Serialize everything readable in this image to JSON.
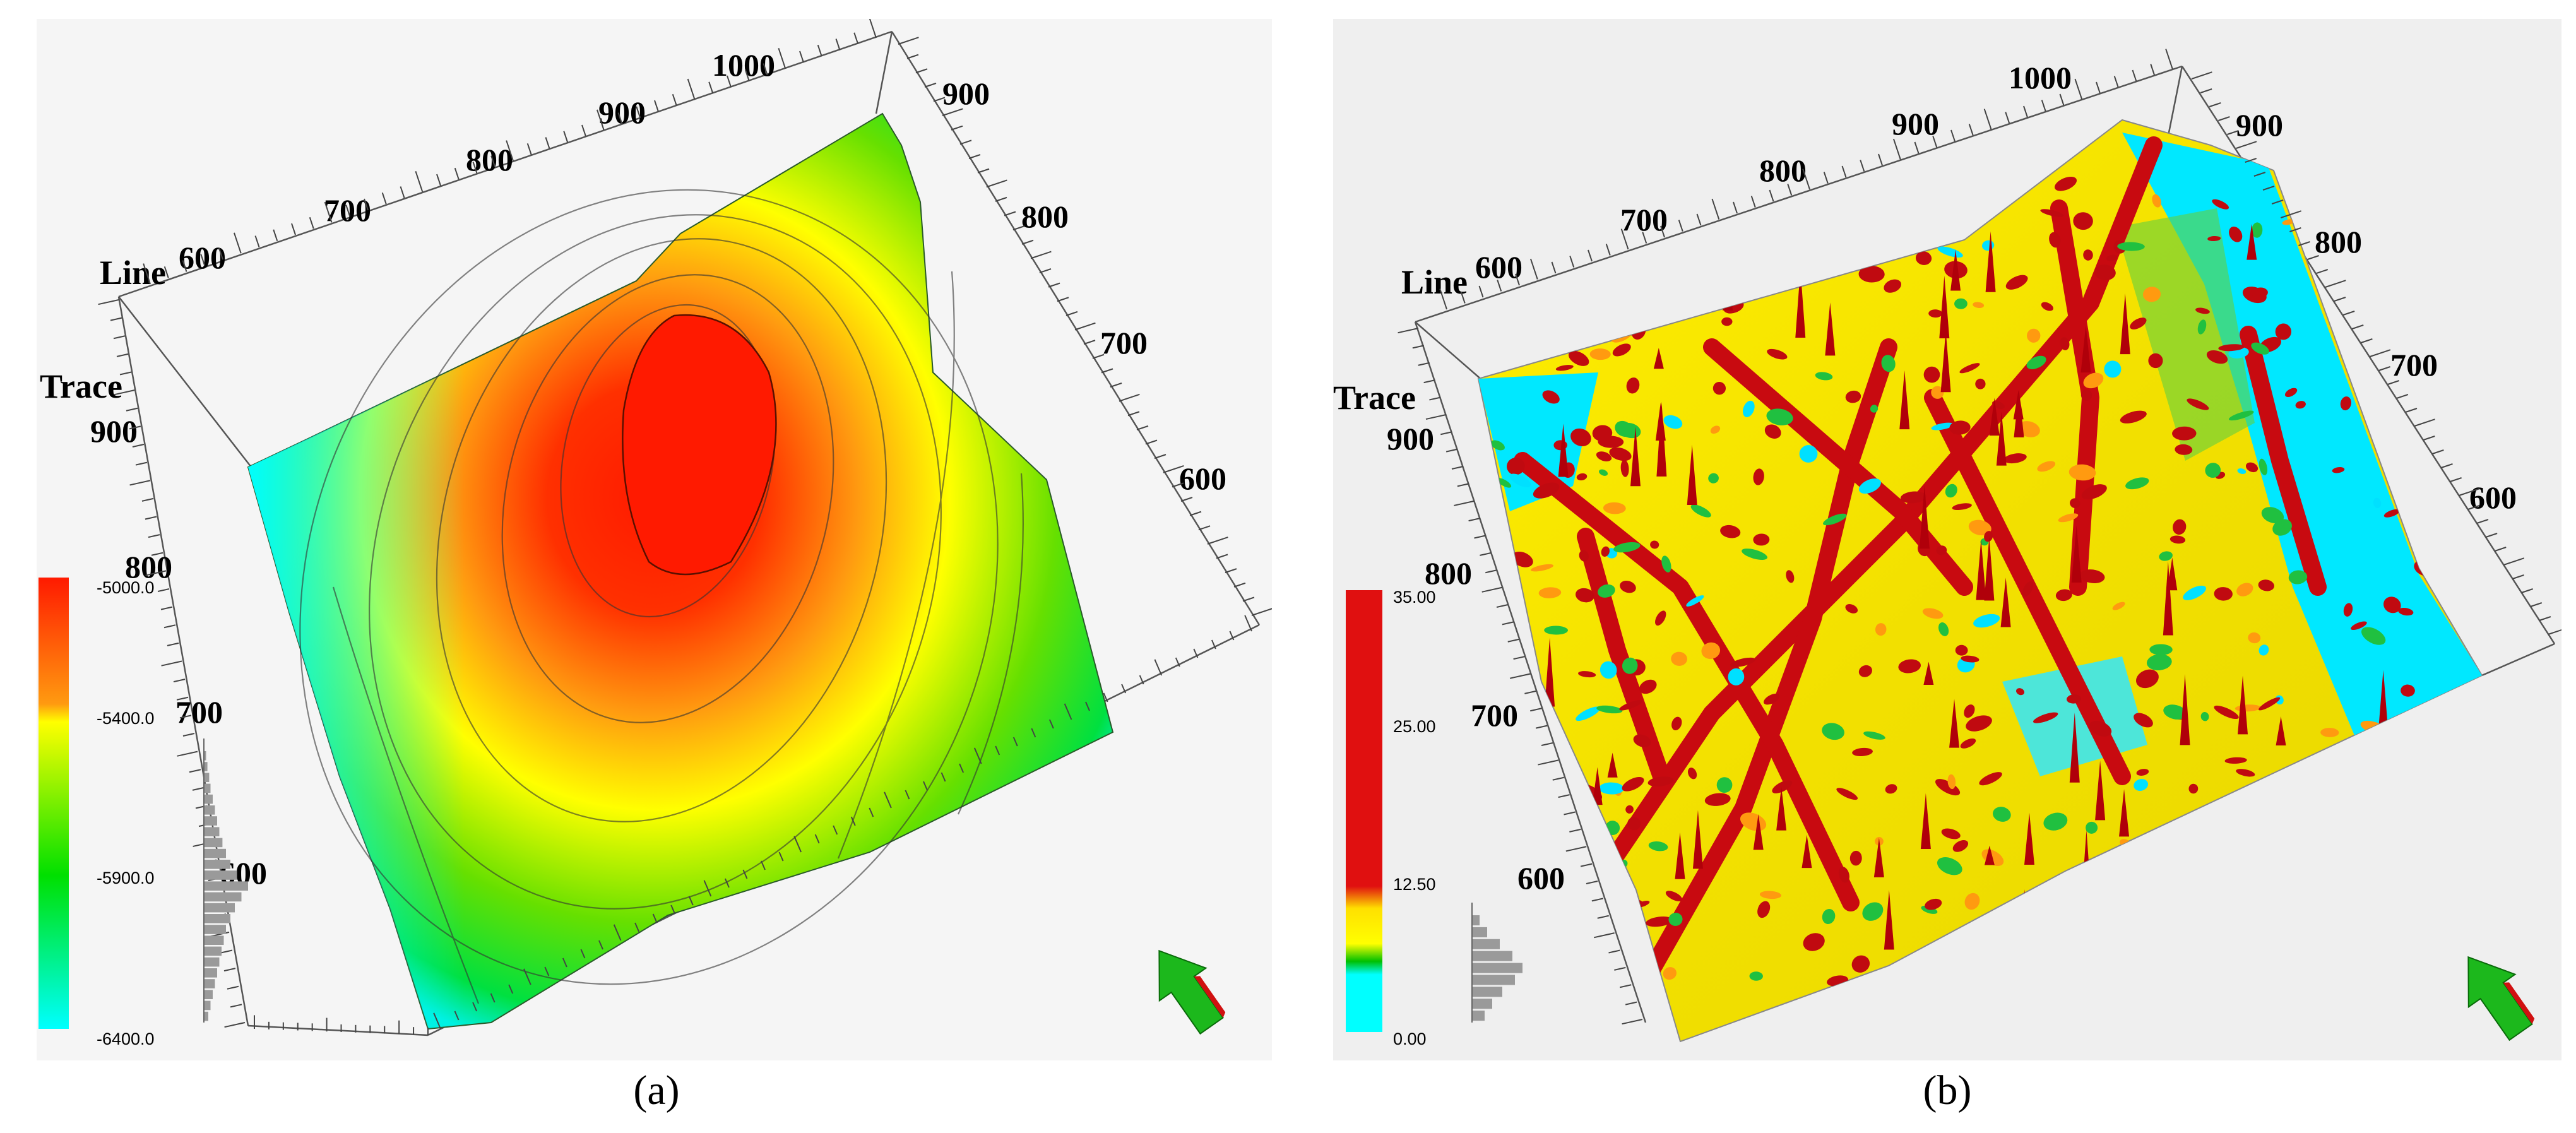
{
  "captions": {
    "a": "(a)",
    "b": "(b)"
  },
  "chart_data": [
    {
      "type": "heatmap",
      "panel": "a",
      "description_axes": {
        "line_label": "Line",
        "trace_label": "Trace",
        "line_ticks_top": [
          "600",
          "700",
          "800",
          "900",
          "1000"
        ],
        "line_ticks_right": [
          "900",
          "800",
          "700",
          "600"
        ],
        "trace_ticks_left": [
          "900",
          "800",
          "700",
          "600"
        ]
      },
      "colorbar": {
        "labels": [
          "-5000.0",
          "-5400.0",
          "-5900.0",
          "-6400.0"
        ],
        "values": [
          -5000,
          -5400,
          -5900,
          -6400
        ],
        "colors": [
          "#ff1a00",
          "#ffff00",
          "#00e000",
          "#00ffff"
        ]
      },
      "histogram": [
        0.05,
        0.08,
        0.12,
        0.15,
        0.2,
        0.25,
        0.3,
        0.35,
        0.42,
        0.5,
        0.6,
        0.75,
        1.0,
        0.85,
        0.7,
        0.6,
        0.5,
        0.45,
        0.4,
        0.35,
        0.3,
        0.25,
        0.2,
        0.15,
        0.1
      ]
    },
    {
      "type": "heatmap",
      "panel": "b",
      "description_axes": {
        "line_label": "Line",
        "trace_label": "Trace",
        "line_ticks_top": [
          "600",
          "700",
          "800",
          "900",
          "1000"
        ],
        "line_ticks_right": [
          "900",
          "800",
          "700",
          "600"
        ],
        "trace_ticks_left": [
          "900",
          "800",
          "700",
          "600"
        ]
      },
      "colorbar": {
        "labels": [
          "35.00",
          "25.00",
          "12.50",
          "0.00"
        ],
        "values": [
          35,
          25,
          12.5,
          0
        ],
        "colors": [
          "#e01010",
          "#ffff00",
          "#00c000",
          "#00ffff"
        ]
      },
      "histogram": [
        0.15,
        0.3,
        0.55,
        0.8,
        1.0,
        0.85,
        0.6,
        0.4,
        0.25
      ]
    }
  ],
  "colors": {
    "red": "#e61a0f",
    "dark_red": "#b4000c",
    "orange": "#ff8c1a",
    "yellow": "#ffff00",
    "green": "#00d000",
    "cyan": "#00ffff",
    "compass_green": "#1cb81c",
    "compass_red": "#d01010"
  },
  "icons": {
    "compass": "north-arrow-icon"
  }
}
